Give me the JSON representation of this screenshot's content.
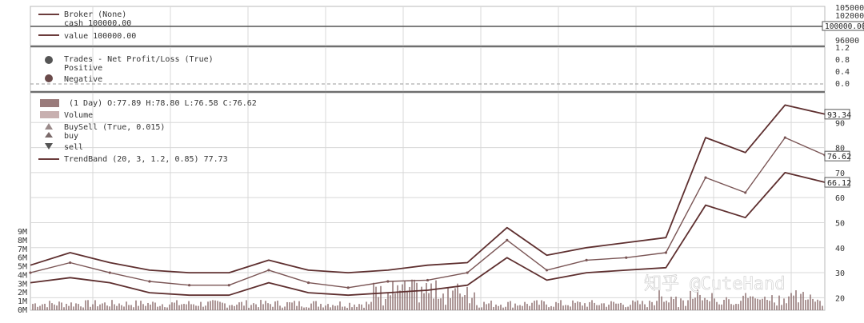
{
  "chart_data": [
    {
      "type": "line",
      "panel": "broker",
      "legend": [
        "Broker (None)",
        "cash 100000.00"
      ],
      "y_ticks": [
        "105000",
        "102000"
      ],
      "value_tag": "100000.00",
      "value": 100000.0
    },
    {
      "type": "line",
      "panel": "value",
      "legend": [
        "value 100000.00"
      ],
      "y_ticks": [
        "96000"
      ],
      "value": 100000.0
    },
    {
      "type": "scatter",
      "panel": "trades",
      "legend": [
        "Trades - Net Profit/Loss (True)",
        "Positive",
        "Negative"
      ],
      "y_ticks": [
        "1.2",
        "0.8",
        "0.4",
        "0.0"
      ],
      "ylim": [
        0.0,
        1.2
      ]
    },
    {
      "type": "line",
      "panel": "price",
      "legend": [
        "(1 Day) O:77.89 H:78.80 L:76.58 C:76.62",
        "Volume",
        "BuySell (True, 0.015)",
        "buy",
        "sell",
        "TrendBand (20, 3, 1.2, 0.85) 77.73"
      ],
      "y_ticks": [
        "90",
        "80",
        "70",
        "60",
        "50",
        "40",
        "30",
        "20"
      ],
      "ylim": [
        15,
        100
      ],
      "last_close": 76.62,
      "tags": [
        {
          "label": "93.34",
          "value": 93.34
        },
        {
          "label": "76.62",
          "value": 76.62
        },
        {
          "label": "66.12",
          "value": 66.12
        }
      ],
      "x": [
        0,
        5,
        10,
        15,
        20,
        25,
        30,
        35,
        40,
        45,
        50,
        55,
        60,
        65,
        70,
        75,
        80,
        85,
        90,
        95,
        100
      ],
      "close": [
        30,
        34,
        30,
        26.5,
        25,
        25,
        31,
        26,
        24,
        26.5,
        27,
        30,
        43,
        31,
        35,
        36,
        38,
        68,
        62,
        84,
        77
      ],
      "upper": [
        33,
        38,
        34,
        31,
        30,
        30,
        35,
        31,
        30,
        31,
        33,
        34,
        48,
        37,
        40,
        42,
        44,
        84,
        78,
        97,
        93.34
      ],
      "lower": [
        26,
        28,
        26,
        22,
        21,
        21,
        26,
        22,
        21,
        22,
        23,
        25,
        36,
        27,
        30,
        31,
        32,
        57,
        52,
        70,
        66.12
      ]
    },
    {
      "type": "bar",
      "panel": "volume",
      "y_ticks": [
        "9M",
        "8M",
        "7M",
        "6M",
        "5M",
        "4M",
        "3M",
        "2M",
        "1M",
        "0M"
      ],
      "ylim": [
        0,
        9
      ]
    }
  ],
  "watermark": "知乎 @CuteHand"
}
